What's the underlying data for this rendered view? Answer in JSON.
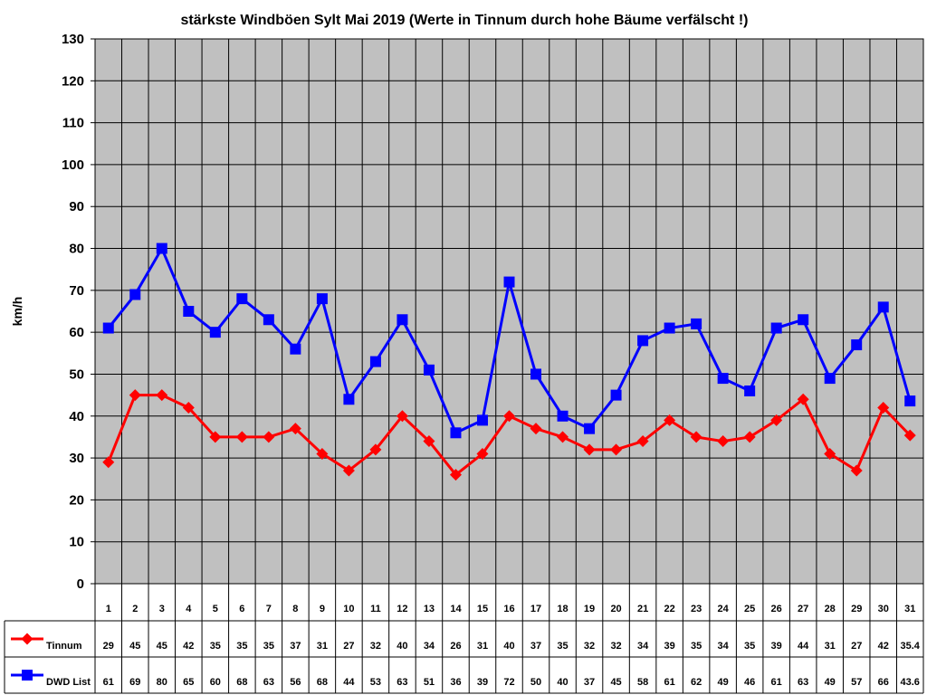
{
  "chart_data": {
    "type": "line",
    "title": "stärkste Windböen Sylt Mai 2019 (Werte in Tinnum durch hohe Bäume verfälscht !)",
    "ylabel": "km/h",
    "xlabel": "",
    "ylim": [
      0,
      130
    ],
    "yticks": [
      0,
      10,
      20,
      30,
      40,
      50,
      60,
      70,
      80,
      90,
      100,
      110,
      120,
      130
    ],
    "grid": true,
    "plot_background": "#c0c0c0",
    "legend_placement": "data-table",
    "categories": [
      "1",
      "2",
      "3",
      "4",
      "5",
      "6",
      "7",
      "8",
      "9",
      "10",
      "11",
      "12",
      "13",
      "14",
      "15",
      "16",
      "17",
      "18",
      "19",
      "20",
      "21",
      "22",
      "23",
      "24",
      "25",
      "26",
      "27",
      "28",
      "29",
      "30",
      "31"
    ],
    "series": [
      {
        "name": "Tinnum",
        "color": "#ff0000",
        "marker": "diamond",
        "values": [
          29,
          45,
          45,
          42,
          35,
          35,
          35,
          37,
          31,
          27,
          32,
          40,
          34,
          26,
          31,
          40,
          37,
          35,
          32,
          32,
          34,
          39,
          35,
          34,
          35,
          39,
          44,
          31,
          27,
          42,
          35.4
        ],
        "labels": [
          "29",
          "45",
          "45",
          "42",
          "35",
          "35",
          "35",
          "37",
          "31",
          "27",
          "32",
          "40",
          "34",
          "26",
          "31",
          "40",
          "37",
          "35",
          "32",
          "32",
          "34",
          "39",
          "35",
          "34",
          "35",
          "39",
          "44",
          "31",
          "27",
          "42",
          "35.4"
        ]
      },
      {
        "name": "DWD List",
        "color": "#0000ff",
        "marker": "square",
        "values": [
          61,
          69,
          80,
          65,
          60,
          68,
          63,
          56,
          68,
          44,
          53,
          63,
          51,
          36,
          39,
          72,
          50,
          40,
          37,
          45,
          58,
          61,
          62,
          49,
          46,
          61,
          63,
          49,
          57,
          66,
          43.6
        ],
        "labels": [
          "61",
          "69",
          "80",
          "65",
          "60",
          "68",
          "63",
          "56",
          "68",
          "44",
          "53",
          "63",
          "51",
          "36",
          "39",
          "72",
          "50",
          "40",
          "37",
          "45",
          "58",
          "61",
          "62",
          "49",
          "46",
          "61",
          "63",
          "49",
          "57",
          "66",
          "43.6"
        ]
      }
    ]
  }
}
